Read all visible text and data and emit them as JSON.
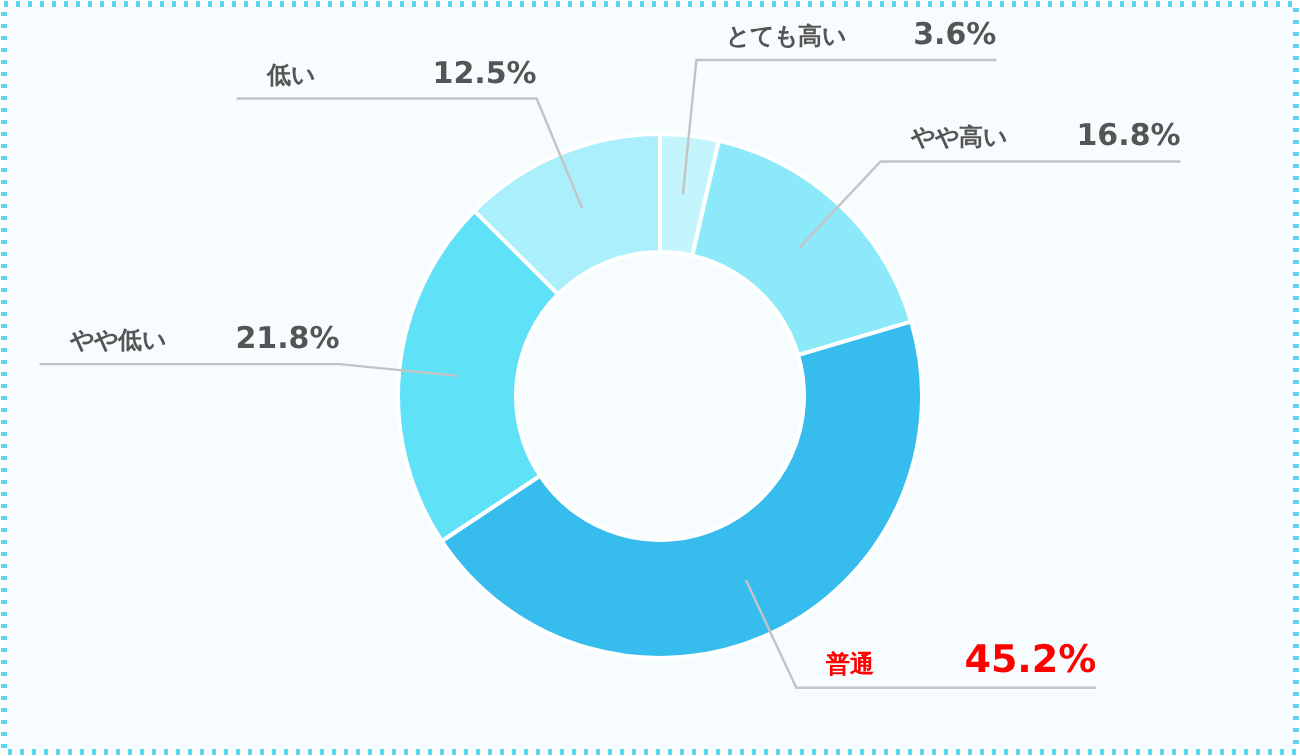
{
  "chart_data": {
    "type": "donut",
    "categories": [
      "とても高い",
      "やや高い",
      "普通",
      "やや低い",
      "低い"
    ],
    "values": [
      3.6,
      16.8,
      45.2,
      21.8,
      12.5
    ],
    "value_labels": [
      "3.6%",
      "16.8%",
      "45.2%",
      "21.8%",
      "12.5%"
    ],
    "colors": [
      "#c4f4fc",
      "#8ce9fa",
      "#36bdee",
      "#5fe2f8",
      "#aaeffb"
    ]
  }
}
